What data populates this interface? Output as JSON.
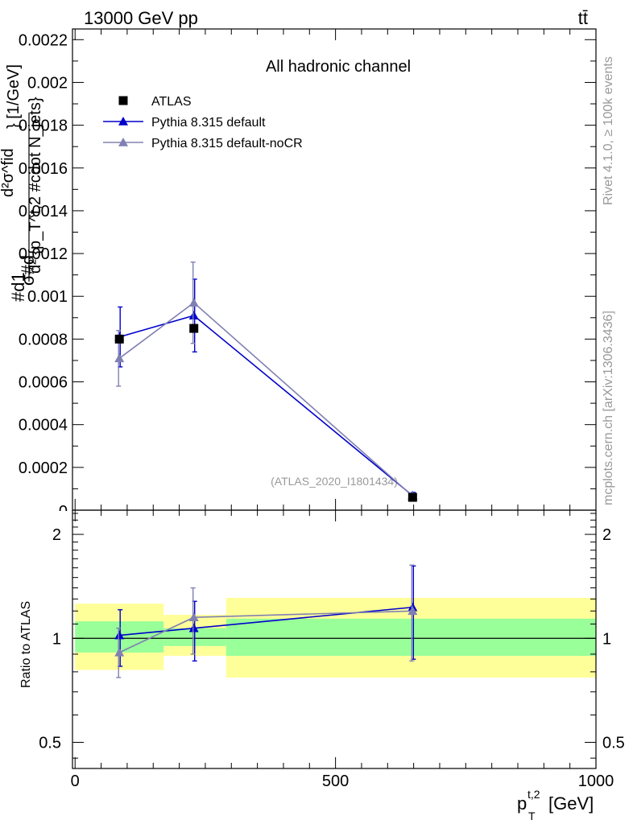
{
  "header": {
    "left": "13000 GeV pp",
    "right": "tt̄"
  },
  "side_labels": {
    "rivet": "Rivet 4.1.0, ≥ 100k events",
    "mcplots": "mcplots.cern.ch [arXiv:1306.3436]"
  },
  "chart_data": [
    {
      "type": "scatter",
      "panel": "main",
      "title": "All hadronic channel",
      "watermark": "(ATLAS_2020_I1801434)",
      "ylabel": "#d1#d d²σ^fid / σ #d d² {p_T^t,2 #cdot N_jets} [1/GeV]",
      "ylabel_parts": [
        "#d",
        "1",
        "σ",
        "#d",
        "d²σ^fid",
        "d² {p_T^t,2 #cdot N_jets}",
        "} [1/GeV]"
      ],
      "ylim": [
        0,
        0.00225
      ],
      "yticks": [
        0.0002,
        0.0004,
        0.0006,
        0.0008,
        0.001,
        0.0012,
        0.0014,
        0.0016,
        0.0018,
        0.002,
        0.0022
      ],
      "ytick_labels": [
        "0.0002",
        "0.0004",
        "0.0006",
        "0.0008",
        "0.001",
        "0.0012",
        "0.0014",
        "0.0016",
        "0.0018",
        "0.002",
        "0.0022"
      ],
      "ytick_zero_label": "0",
      "xlim": [
        -5,
        1000
      ],
      "legend_position": "top-left",
      "series": [
        {
          "name": "ATLAS",
          "color": "#000000",
          "marker": "square",
          "line": false,
          "x": [
            85,
            228,
            648
          ],
          "y": [
            0.0008,
            0.00085,
            6e-05
          ],
          "err": [
            2e-05,
            2e-05,
            5e-06
          ]
        },
        {
          "name": "Pythia 8.315 default",
          "color": "#0000cc",
          "marker": "triangle",
          "line": true,
          "x": [
            85,
            228,
            648
          ],
          "y": [
            0.00081,
            0.00091,
            6.8e-05
          ],
          "err": [
            0.00014,
            0.00017,
            1.5e-05
          ]
        },
        {
          "name": "Pythia 8.315 default-noCR",
          "color": "#8080b3",
          "marker": "triangle",
          "line": true,
          "x": [
            85,
            228,
            648
          ],
          "y": [
            0.00071,
            0.00097,
            6.6e-05
          ],
          "err": [
            0.00013,
            0.00019,
            1.4e-05
          ]
        }
      ]
    },
    {
      "type": "scatter",
      "panel": "ratio",
      "ylabel": "Ratio to ATLAS",
      "xlabel": "p_T^t,2 [GeV]",
      "xlabel_parts": [
        "p",
        "T",
        "t,2",
        "[GeV]"
      ],
      "xlim": [
        -5,
        1000
      ],
      "xticks": [
        0,
        500,
        1000
      ],
      "xtick_labels": [
        "0",
        "500",
        "1000"
      ],
      "ylim": [
        0.42,
        2.35
      ],
      "ylog": true,
      "yticks": [
        0.5,
        1,
        2
      ],
      "ytick_labels": [
        "0.5",
        "1",
        "2"
      ],
      "uncertainty_bands": [
        {
          "x0": 0,
          "x1": 170,
          "inner": [
            0.91,
            1.12
          ],
          "outer": [
            0.81,
            1.26
          ]
        },
        {
          "x0": 170,
          "x1": 290,
          "inner": [
            0.95,
            1.07
          ],
          "outer": [
            0.89,
            1.17
          ]
        },
        {
          "x0": 290,
          "x1": 1000,
          "inner": [
            0.89,
            1.14
          ],
          "outer": [
            0.77,
            1.31
          ]
        }
      ],
      "band_colors": {
        "inner": "#99ff99",
        "outer": "#ffff99"
      },
      "series": [
        {
          "name": "Pythia 8.315 default",
          "color": "#0000cc",
          "x": [
            85,
            228,
            648
          ],
          "y": [
            1.02,
            1.07,
            1.23
          ],
          "lo": [
            0.83,
            0.86,
            0.87
          ],
          "hi": [
            1.21,
            1.28,
            1.62
          ]
        },
        {
          "name": "Pythia 8.315 default-noCR",
          "color": "#8080b3",
          "x": [
            85,
            228,
            648
          ],
          "y": [
            0.91,
            1.15,
            1.2
          ],
          "lo": [
            0.77,
            0.9,
            0.86
          ],
          "hi": [
            1.07,
            1.4,
            1.63
          ]
        }
      ]
    }
  ]
}
